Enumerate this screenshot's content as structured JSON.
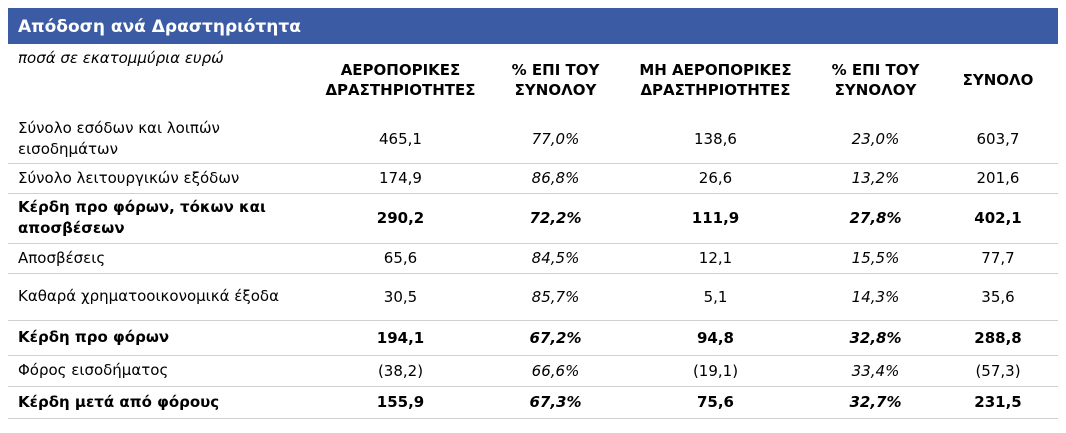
{
  "header": {
    "title": "Απόδοση ανά Δραστηριότητα"
  },
  "table": {
    "unit_note": "ποσά σε εκατομμύρια ευρώ",
    "columns": [
      "ΑΕΡΟΠΟΡΙΚΕΣ ΔΡΑΣΤΗΡΙΟΤΗΤΕΣ",
      "% ΕΠΙ ΤΟΥ ΣΥΝΟΛΟΥ",
      "ΜΗ ΑΕΡΟΠΟΡΙΚΕΣ ΔΡΑΣΤΗΡΙΟΤΗΤΕΣ",
      "% ΕΠΙ ΤΟΥ ΣΥΝΟΛΟΥ",
      "ΣΥΝΟΛΟ"
    ],
    "rows": [
      {
        "label": "Σύνολο εσόδων και λοιπών εισοδημάτων",
        "cells": [
          "465,1",
          "77,0%",
          "138,6",
          "23,0%",
          "603,7"
        ],
        "bold": false
      },
      {
        "label": "Σύνολο λειτουργικών εξόδων",
        "cells": [
          "174,9",
          "86,8%",
          "26,6",
          "13,2%",
          "201,6"
        ],
        "bold": false
      },
      {
        "label": "Κέρδη προ φόρων, τόκων και αποσβέσεων",
        "cells": [
          "290,2",
          "72,2%",
          "111,9",
          "27,8%",
          "402,1"
        ],
        "bold": true
      },
      {
        "label": "Αποσβέσεις",
        "cells": [
          "65,6",
          "84,5%",
          "12,1",
          "15,5%",
          "77,7"
        ],
        "bold": false
      },
      {
        "label": "Καθαρά χρηματοοικονομικά έξοδα",
        "cells": [
          "30,5",
          "85,7%",
          "5,1",
          "14,3%",
          "35,6"
        ],
        "bold": false
      },
      {
        "label": "Κέρδη προ φόρων",
        "cells": [
          "194,1",
          "67,2%",
          "94,8",
          "32,8%",
          "288,8"
        ],
        "bold": true
      },
      {
        "label": "Φόρος εισοδήματος",
        "cells": [
          "(38,2)",
          "66,6%",
          "(19,1)",
          "33,4%",
          "(57,3)"
        ],
        "bold": false
      },
      {
        "label": "Κέρδη μετά από φόρους",
        "cells": [
          "155,9",
          "67,3%",
          "75,6",
          "32,7%",
          "231,5"
        ],
        "bold": true
      }
    ]
  }
}
